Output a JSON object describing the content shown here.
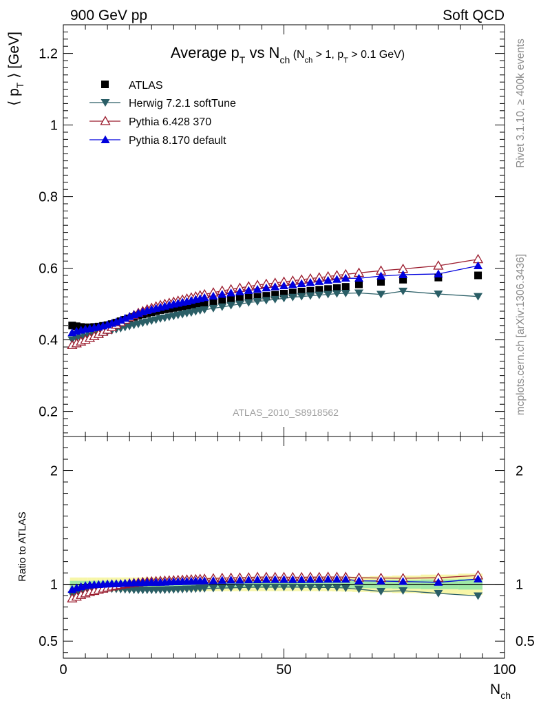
{
  "header": {
    "left": "900 GeV pp",
    "right": "Soft QCD"
  },
  "side": {
    "rivet": "Rivet 3.1.10, ≥ 400k events",
    "mcplots": "mcplots.cern.ch [arXiv:1306.3436]"
  },
  "chart_data": [
    {
      "type": "scatter",
      "panel": "main",
      "title_main": "Average p",
      "title_sub_T": "T",
      "title_vs": " vs N",
      "title_sub_ch": "ch",
      "title_paren_open": " (N",
      "title_paren_ch": "ch",
      "title_gt1": " > 1, p",
      "title_paren_T": "T",
      "title_tail": " > 0.1 GeV)",
      "watermark": "ATLAS_2010_S8918562",
      "ylabel_pre": "⟨ p",
      "ylabel_sub": "T",
      "ylabel_post": " ⟩  [GeV]",
      "xlim": [
        0,
        100
      ],
      "ylim": [
        0.13,
        1.28
      ],
      "yticks": [
        0.2,
        0.4,
        0.6,
        0.8,
        1,
        1.2
      ],
      "ytick_labels": [
        "0.2",
        "0.4",
        "0.6",
        "0.8",
        "1",
        "1.2"
      ],
      "legend_position": "top-left",
      "series": [
        {
          "name": "ATLAS",
          "marker": "square",
          "color": "#000000",
          "x": [
            2,
            3,
            4,
            5,
            6,
            7,
            8,
            9,
            10,
            11,
            12,
            13,
            14,
            15,
            16,
            17,
            18,
            19,
            20,
            21,
            22,
            23,
            24,
            25,
            26,
            27,
            28,
            29,
            30,
            31,
            32,
            34,
            36,
            38,
            40,
            42,
            44,
            46,
            48,
            50,
            52,
            54,
            56,
            58,
            60,
            62,
            64,
            67,
            72,
            77,
            85,
            94
          ],
          "y": [
            0.44,
            0.438,
            0.436,
            0.435,
            0.435,
            0.436,
            0.437,
            0.439,
            0.441,
            0.444,
            0.448,
            0.452,
            0.456,
            0.46,
            0.464,
            0.468,
            0.471,
            0.474,
            0.477,
            0.48,
            0.483,
            0.485,
            0.487,
            0.489,
            0.491,
            0.493,
            0.495,
            0.497,
            0.499,
            0.501,
            0.503,
            0.506,
            0.509,
            0.512,
            0.515,
            0.518,
            0.52,
            0.523,
            0.526,
            0.529,
            0.532,
            0.535,
            0.537,
            0.54,
            0.542,
            0.545,
            0.548,
            0.555,
            0.562,
            0.568,
            0.574,
            0.58
          ]
        },
        {
          "name": "Herwig 7.2.1 softTune",
          "marker": "triangle-down",
          "color": "#2a5e66",
          "x": [
            2,
            3,
            4,
            5,
            6,
            7,
            8,
            9,
            10,
            11,
            12,
            13,
            14,
            15,
            16,
            17,
            18,
            19,
            20,
            21,
            22,
            23,
            24,
            25,
            26,
            27,
            28,
            29,
            30,
            31,
            32,
            34,
            36,
            38,
            40,
            42,
            44,
            46,
            48,
            50,
            52,
            54,
            56,
            58,
            60,
            62,
            64,
            67,
            72,
            77,
            85,
            94
          ],
          "y": [
            0.4,
            0.403,
            0.405,
            0.408,
            0.411,
            0.414,
            0.417,
            0.42,
            0.423,
            0.426,
            0.429,
            0.432,
            0.435,
            0.438,
            0.441,
            0.444,
            0.447,
            0.45,
            0.453,
            0.456,
            0.459,
            0.461,
            0.464,
            0.466,
            0.469,
            0.471,
            0.474,
            0.476,
            0.479,
            0.482,
            0.484,
            0.488,
            0.492,
            0.496,
            0.5,
            0.504,
            0.507,
            0.51,
            0.513,
            0.516,
            0.519,
            0.521,
            0.523,
            0.525,
            0.527,
            0.529,
            0.53,
            0.531,
            0.527,
            0.536,
            0.528,
            0.521
          ]
        },
        {
          "name": "Pythia 6.428 370",
          "marker": "triangle-up-open",
          "color": "#9b1c2e",
          "x": [
            2,
            3,
            4,
            5,
            6,
            7,
            8,
            9,
            10,
            11,
            12,
            13,
            14,
            15,
            16,
            17,
            18,
            19,
            20,
            21,
            22,
            23,
            24,
            25,
            26,
            27,
            28,
            29,
            30,
            31,
            32,
            34,
            36,
            38,
            40,
            42,
            44,
            46,
            48,
            50,
            52,
            54,
            56,
            58,
            60,
            62,
            64,
            67,
            72,
            77,
            85,
            94
          ],
          "y": [
            0.385,
            0.39,
            0.395,
            0.4,
            0.405,
            0.41,
            0.416,
            0.422,
            0.428,
            0.435,
            0.442,
            0.449,
            0.456,
            0.463,
            0.469,
            0.475,
            0.48,
            0.485,
            0.489,
            0.493,
            0.497,
            0.5,
            0.503,
            0.506,
            0.509,
            0.512,
            0.515,
            0.518,
            0.521,
            0.524,
            0.527,
            0.532,
            0.537,
            0.541,
            0.545,
            0.549,
            0.553,
            0.556,
            0.559,
            0.562,
            0.565,
            0.568,
            0.571,
            0.574,
            0.577,
            0.58,
            0.583,
            0.587,
            0.593,
            0.598,
            0.607,
            0.625
          ]
        },
        {
          "name": "Pythia 8.170 default",
          "marker": "triangle-up",
          "color": "#0000dd",
          "x": [
            2,
            3,
            4,
            5,
            6,
            7,
            8,
            9,
            10,
            11,
            12,
            13,
            14,
            15,
            16,
            17,
            18,
            19,
            20,
            21,
            22,
            23,
            24,
            25,
            26,
            27,
            28,
            29,
            30,
            31,
            32,
            34,
            36,
            38,
            40,
            42,
            44,
            46,
            48,
            50,
            52,
            54,
            56,
            58,
            60,
            62,
            64,
            67,
            72,
            77,
            85,
            94
          ],
          "y": [
            0.42,
            0.424,
            0.427,
            0.43,
            0.432,
            0.434,
            0.436,
            0.439,
            0.442,
            0.446,
            0.45,
            0.455,
            0.46,
            0.465,
            0.47,
            0.474,
            0.478,
            0.482,
            0.485,
            0.488,
            0.491,
            0.494,
            0.497,
            0.5,
            0.502,
            0.505,
            0.507,
            0.51,
            0.513,
            0.515,
            0.518,
            0.522,
            0.527,
            0.531,
            0.534,
            0.538,
            0.541,
            0.545,
            0.548,
            0.551,
            0.554,
            0.557,
            0.56,
            0.563,
            0.566,
            0.569,
            0.572,
            0.572,
            0.578,
            0.582,
            0.584,
            0.607
          ]
        }
      ]
    },
    {
      "type": "line",
      "panel": "ratio",
      "ylabel": "Ratio to ATLAS",
      "xlabel": "N",
      "xlabel_sub": "ch",
      "xlim": [
        0,
        100
      ],
      "ylim": [
        0.35,
        2.3
      ],
      "xticks": [
        0,
        50,
        100
      ],
      "xtick_labels": [
        "0",
        "50",
        "100"
      ],
      "yticks": [
        0.5,
        1,
        2
      ],
      "ytick_labels": [
        "0.5",
        "1",
        "2"
      ],
      "band_inner_halfwidth": 0.03,
      "band_outer_halfwidth": 0.06
    }
  ]
}
